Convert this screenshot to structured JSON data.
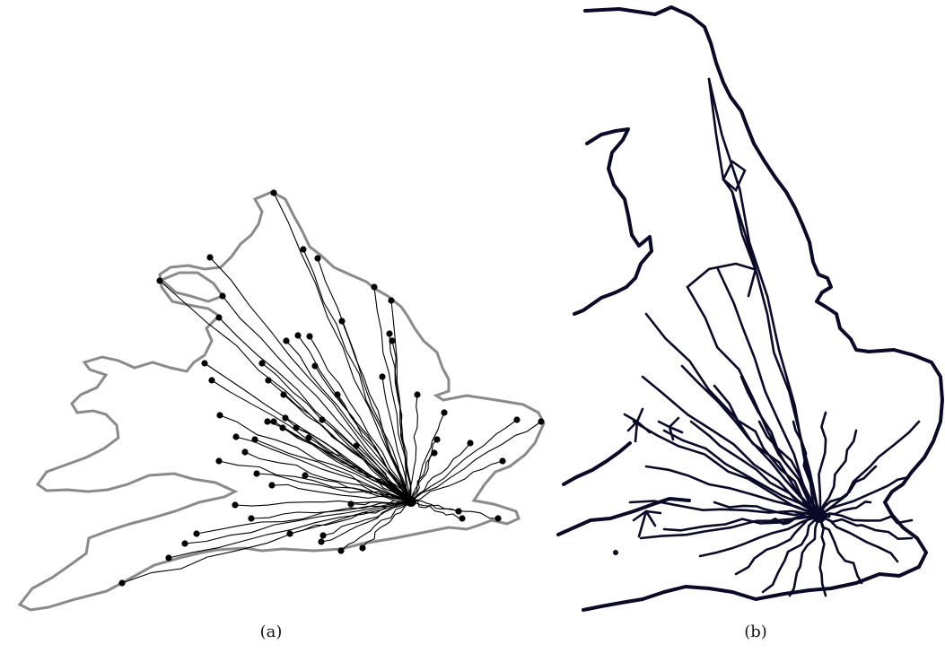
{
  "figure": {
    "panels": [
      {
        "id": "a",
        "caption": "(a)",
        "outline_color": "#888888",
        "network_color": "#000000"
      },
      {
        "id": "b",
        "caption": "(b)",
        "outline_color": "#0a0a28",
        "network_color": "#0a0a28"
      }
    ]
  }
}
